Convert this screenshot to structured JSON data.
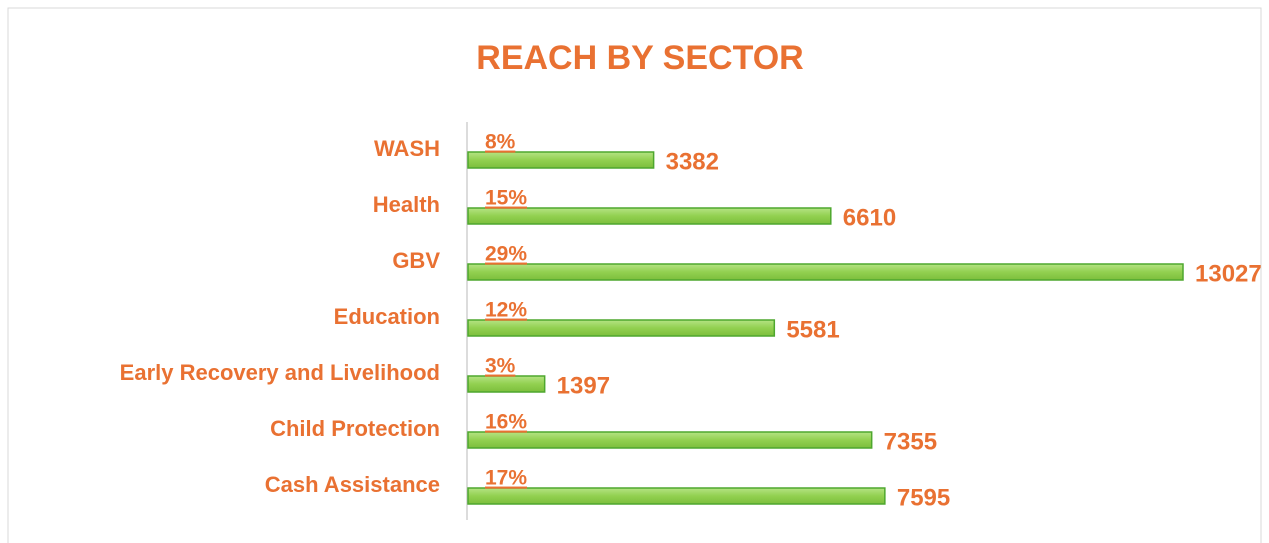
{
  "chart_data": {
    "type": "bar",
    "orientation": "horizontal",
    "title": "REACH BY SECTOR",
    "categories": [
      "WASH",
      "Health",
      "GBV",
      "Education",
      "Early Recovery and Livelihood",
      "Child Protection",
      "Cash Assistance"
    ],
    "values": [
      3382,
      6610,
      13027,
      5581,
      1397,
      7355,
      7595
    ],
    "shares": [
      8,
      15,
      29,
      12,
      3,
      16,
      17
    ],
    "share_labels": [
      "8%",
      "15%",
      "29%",
      "12%",
      "3%",
      "16%",
      "17%"
    ],
    "color": "#92d050",
    "edge_color": "#4ea72e",
    "label_color": "#e97132"
  }
}
